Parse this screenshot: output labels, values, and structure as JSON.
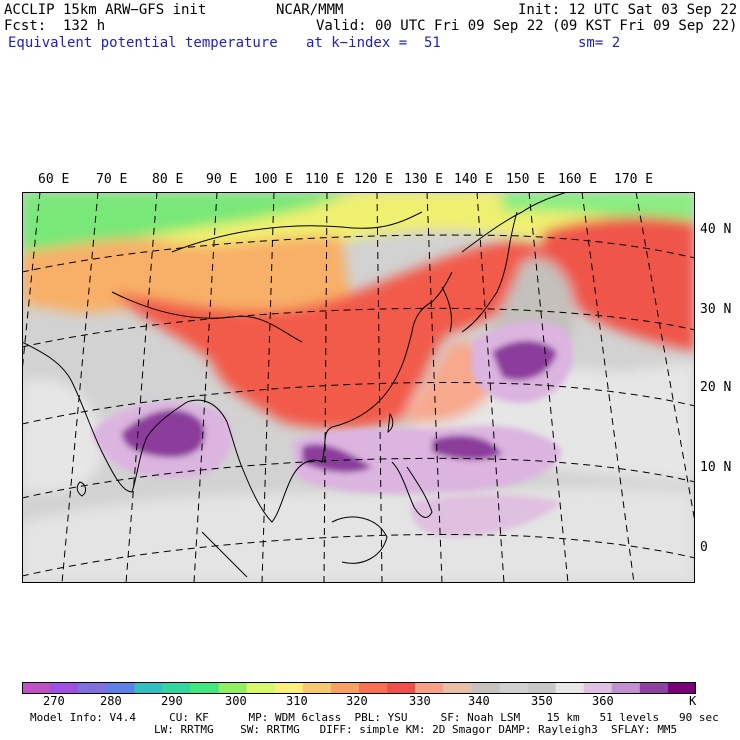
{
  "header": {
    "model": "ACCLIP 15km ARW−GFS init",
    "center": "NCAR/MMM",
    "init": "Init: 12 UTC Sat 03 Sep 22",
    "fcst": "Fcst:  132 h",
    "valid": "Valid: 00 UTC Fri 09 Sep 22 (09 KST Fri 09 Sep 22)",
    "field": "Equivalent potential temperature",
    "level": "at k−index =  51",
    "smooth": "sm= 2"
  },
  "map": {
    "lon_labels": [
      "60 E",
      "70 E",
      "80 E",
      "90 E",
      "100 E",
      "110 E",
      "120 E",
      "130 E",
      "140 E",
      "150 E",
      "160 E",
      "170 E"
    ],
    "lat_labels": [
      "40 N",
      "30 N",
      "20 N",
      "10 N",
      "0"
    ]
  },
  "colorbar": {
    "colors": [
      "#c050c8",
      "#a050e0",
      "#8070e0",
      "#6080e8",
      "#30c0c0",
      "#30d8a0",
      "#40e880",
      "#90f060",
      "#d8f868",
      "#f8f078",
      "#f8c870",
      "#f8a060",
      "#f87050",
      "#f05048",
      "#f8a088",
      "#e8c0a8",
      "#c8c0bc",
      "#d0d0d0",
      "#c8c8c8",
      "#e8e8e8",
      "#e0c0e0",
      "#c090d0",
      "#9040a0",
      "#7a007a"
    ],
    "labels": [
      "270",
      "280",
      "290",
      "300",
      "310",
      "320",
      "330",
      "340",
      "350",
      "360"
    ],
    "unit": "K"
  },
  "footer": {
    "line1": "Model Info: V4.4     CU: KF      MP: WDM 6class  PBL: YSU     SF: Noah LSM    15 km   51 levels   90 sec",
    "line2": "LW: RRTMG    SW: RRTMG   DIFF: simple KM: 2D Smagor DAMP: Rayleigh3  SFLAY: MM5"
  }
}
